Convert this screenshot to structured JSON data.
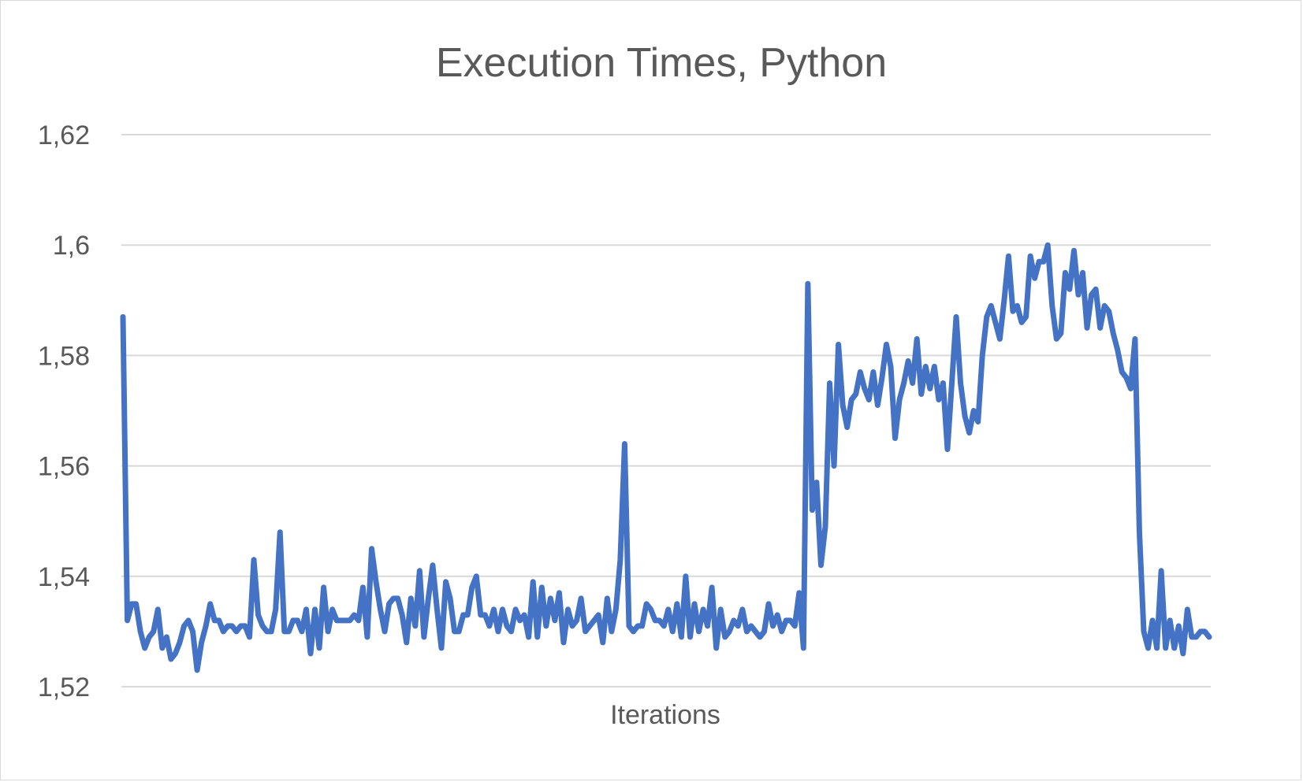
{
  "chart_data": {
    "type": "line",
    "title": "Execution Times, Python",
    "xlabel": "Iterations",
    "ylabel": "",
    "ylim": [
      1.52,
      1.62
    ],
    "yticks": [
      "1,52",
      "1,54",
      "1,56",
      "1,58",
      "1,6",
      "1,62"
    ],
    "ytick_values": [
      1.52,
      1.54,
      1.56,
      1.58,
      1.6,
      1.62
    ],
    "grid": true,
    "legend": "none",
    "line_color": "#4472C4",
    "series": [
      {
        "values": [
          1.587,
          1.532,
          1.535,
          1.535,
          1.53,
          1.527,
          1.529,
          1.53,
          1.534,
          1.527,
          1.529,
          1.525,
          1.526,
          1.528,
          1.531,
          1.532,
          1.53,
          1.523,
          1.528,
          1.531,
          1.535,
          1.532,
          1.532,
          1.53,
          1.531,
          1.531,
          1.53,
          1.531,
          1.531,
          1.529,
          1.543,
          1.533,
          1.531,
          1.53,
          1.53,
          1.534,
          1.548,
          1.53,
          1.53,
          1.532,
          1.532,
          1.53,
          1.534,
          1.526,
          1.534,
          1.527,
          1.538,
          1.53,
          1.534,
          1.532,
          1.532,
          1.532,
          1.532,
          1.533,
          1.532,
          1.538,
          1.529,
          1.545,
          1.539,
          1.534,
          1.53,
          1.535,
          1.536,
          1.536,
          1.533,
          1.528,
          1.536,
          1.531,
          1.541,
          1.529,
          1.536,
          1.542,
          1.534,
          1.527,
          1.539,
          1.536,
          1.53,
          1.53,
          1.533,
          1.533,
          1.538,
          1.54,
          1.533,
          1.533,
          1.531,
          1.534,
          1.53,
          1.534,
          1.531,
          1.53,
          1.534,
          1.532,
          1.533,
          1.529,
          1.539,
          1.529,
          1.538,
          1.531,
          1.536,
          1.532,
          1.537,
          1.528,
          1.534,
          1.531,
          1.532,
          1.536,
          1.53,
          1.531,
          1.532,
          1.533,
          1.528,
          1.536,
          1.53,
          1.534,
          1.543,
          1.564,
          1.531,
          1.53,
          1.531,
          1.531,
          1.535,
          1.534,
          1.532,
          1.532,
          1.531,
          1.534,
          1.53,
          1.535,
          1.529,
          1.54,
          1.529,
          1.535,
          1.53,
          1.534,
          1.531,
          1.538,
          1.527,
          1.534,
          1.529,
          1.53,
          1.532,
          1.531,
          1.534,
          1.53,
          1.531,
          1.53,
          1.529,
          1.53,
          1.535,
          1.531,
          1.533,
          1.53,
          1.532,
          1.532,
          1.531,
          1.537,
          1.527,
          1.593,
          1.552,
          1.557,
          1.542,
          1.549,
          1.575,
          1.56,
          1.582,
          1.571,
          1.567,
          1.572,
          1.573,
          1.577,
          1.574,
          1.572,
          1.577,
          1.571,
          1.576,
          1.582,
          1.578,
          1.565,
          1.572,
          1.575,
          1.579,
          1.575,
          1.583,
          1.573,
          1.578,
          1.574,
          1.578,
          1.572,
          1.575,
          1.563,
          1.575,
          1.587,
          1.575,
          1.569,
          1.566,
          1.57,
          1.568,
          1.58,
          1.587,
          1.589,
          1.586,
          1.583,
          1.59,
          1.598,
          1.588,
          1.589,
          1.586,
          1.587,
          1.598,
          1.594,
          1.597,
          1.597,
          1.6,
          1.589,
          1.583,
          1.584,
          1.595,
          1.592,
          1.599,
          1.591,
          1.595,
          1.585,
          1.591,
          1.592,
          1.585,
          1.589,
          1.588,
          1.584,
          1.581,
          1.577,
          1.576,
          1.574,
          1.583,
          1.548,
          1.53,
          1.527,
          1.532,
          1.527,
          1.541,
          1.527,
          1.532,
          1.527,
          1.531,
          1.526,
          1.534,
          1.529,
          1.529,
          1.53,
          1.53,
          1.529
        ]
      }
    ]
  }
}
